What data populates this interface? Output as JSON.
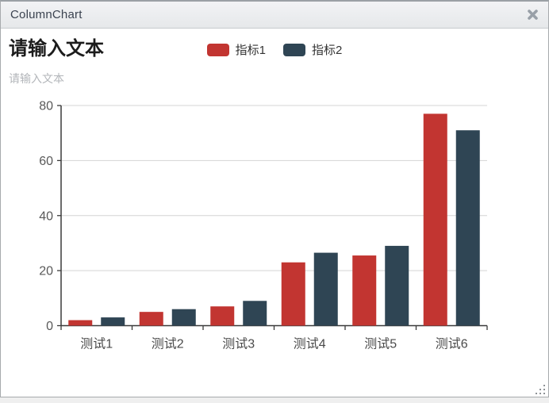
{
  "window": {
    "title": "ColumnChart",
    "close_icon": "thick-x-close",
    "colors": {
      "titlebar_bg_top": "#f2f3f5",
      "titlebar_bg_bottom": "#e6e8ea",
      "titlebar_text": "#3b4350",
      "window_border": "#a7aaad",
      "close_icon": "#99a0a8",
      "page_background": "#efefef"
    }
  },
  "chart_data": {
    "type": "bar",
    "title": "请输入文本",
    "subtitle": "请输入文本",
    "categories": [
      "测试1",
      "测试2",
      "测试3",
      "测试4",
      "测试5",
      "测试6"
    ],
    "series": [
      {
        "name": "指标1",
        "color": "#c23531",
        "values": [
          2,
          5,
          7,
          23,
          25.5,
          77
        ]
      },
      {
        "name": "指标2",
        "color": "#2f4554",
        "values": [
          3,
          6,
          9,
          26.5,
          29,
          71
        ]
      }
    ],
    "xlabel": "",
    "ylabel": "",
    "ylim": [
      0,
      80
    ],
    "yticks": [
      0,
      20,
      40,
      60,
      80
    ],
    "grid": true,
    "legend_position": "top-center",
    "legend_icon_shape": "round-rect",
    "colors": {
      "axis": "#3a3a3a",
      "gridline": "#d4d4d4",
      "tick_label": "#595959",
      "title_text": "#1c1c1c",
      "subtitle_text": "#b3b6ba"
    }
  }
}
